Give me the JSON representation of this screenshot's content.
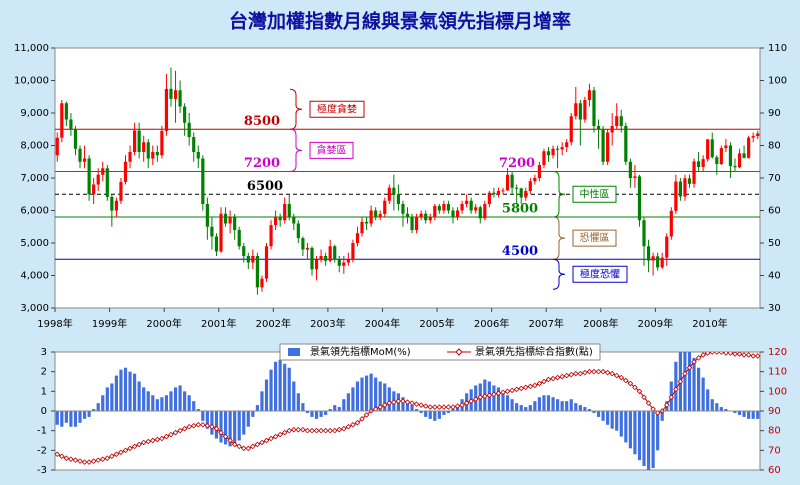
{
  "chart_data": [
    {
      "type": "candlestick",
      "title": "台灣加權指數月線與景氣領先指標月增率",
      "categories": [
        "1998年",
        null,
        null,
        null,
        null,
        null,
        null,
        null,
        null,
        null,
        null,
        null,
        "1999年",
        null,
        null,
        null,
        null,
        null,
        null,
        null,
        null,
        null,
        null,
        null,
        "2000年",
        null,
        null,
        null,
        null,
        null,
        null,
        null,
        null,
        null,
        null,
        null,
        "2001年",
        null,
        null,
        null,
        null,
        null,
        null,
        null,
        null,
        null,
        null,
        null,
        "2002年",
        null,
        null,
        null,
        null,
        null,
        null,
        null,
        null,
        null,
        null,
        null,
        "2003年",
        null,
        null,
        null,
        null,
        null,
        null,
        null,
        null,
        null,
        null,
        null,
        "2004年",
        null,
        null,
        null,
        null,
        null,
        null,
        null,
        null,
        null,
        null,
        null,
        "2005年",
        null,
        null,
        null,
        null,
        null,
        null,
        null,
        null,
        null,
        null,
        null,
        "2006年",
        null,
        null,
        null,
        null,
        null,
        null,
        null,
        null,
        null,
        null,
        null,
        "2007年",
        null,
        null,
        null,
        null,
        null,
        null,
        null,
        null,
        null,
        null,
        null,
        "2008年",
        null,
        null,
        null,
        null,
        null,
        null,
        null,
        null,
        null,
        null,
        null,
        "2009年",
        null,
        null,
        null,
        null,
        null,
        null,
        null,
        null,
        null,
        null,
        null,
        "2010年",
        null,
        null,
        null,
        null,
        null,
        null,
        null,
        null,
        null,
        null
      ],
      "open": [
        7700,
        8240,
        9300,
        8800,
        8500,
        7900,
        7500,
        7600,
        6500,
        6800,
        7100,
        7300,
        6418,
        5998,
        6300,
        6880,
        7500,
        7800,
        8460,
        7800,
        8100,
        7600,
        7800,
        7700,
        8448,
        9744,
        9435,
        9700,
        9200,
        8700,
        8260,
        7800,
        7600,
        6200,
        5500,
        5200,
        4739,
        5900,
        5600,
        5800,
        5400,
        4900,
        4600,
        4400,
        4600,
        3636,
        3903,
        4900,
        5551,
        5800,
        5700,
        6200,
        5800,
        5600,
        5150,
        4800,
        4850,
        4190,
        4500,
        4600,
        4452,
        4900,
        4500,
        4300,
        4400,
        4500,
        5000,
        5300,
        5650,
        5600,
        6000,
        5800,
        5890,
        6300,
        6700,
        6500,
        6200,
        5900,
        5800,
        5400,
        5800,
        5900,
        5700,
        5800,
        6140,
        6000,
        6200,
        6000,
        5800,
        6000,
        6200,
        6300,
        6000,
        6100,
        5760,
        6200,
        6548,
        6500,
        6600,
        6620,
        7100,
        6700,
        6680,
        6400,
        6600,
        6900,
        7000,
        7400,
        7823,
        7700,
        7900,
        7880,
        7950,
        8100,
        8900,
        9300,
        8800,
        9400,
        9700,
        8600,
        8506,
        7500,
        8400,
        8600,
        8900,
        8600,
        7500,
        7000,
        7050,
        5700,
        4900,
        4460,
        4591,
        4250,
        4550,
        5200,
        5990,
        6890,
        6430,
        6990,
        6820,
        7510,
        7340,
        7580,
        8188,
        7640,
        7430,
        7920,
        8000,
        7370,
        7330,
        7760,
        7620,
        8240,
        8290
      ],
      "high": [
        8400,
        9400,
        9350,
        9000,
        8600,
        8000,
        8000,
        7700,
        7000,
        7300,
        7500,
        7400,
        6500,
        6400,
        7000,
        7700,
        8000,
        8700,
        8700,
        8300,
        8200,
        8000,
        8000,
        8600,
        10200,
        10400,
        10300,
        10000,
        9300,
        9000,
        8400,
        8000,
        7700,
        6400,
        5800,
        5300,
        6100,
        6100,
        6000,
        5900,
        5500,
        5000,
        4700,
        4800,
        4700,
        4000,
        5000,
        5700,
        6000,
        5900,
        6400,
        6500,
        5900,
        5700,
        5200,
        5000,
        4900,
        4600,
        4800,
        4700,
        5100,
        4950,
        4600,
        4600,
        4700,
        5100,
        5500,
        5800,
        5800,
        6150,
        6100,
        6000,
        6400,
        6800,
        7100,
        6800,
        6300,
        6100,
        5900,
        5900,
        6000,
        6000,
        5900,
        6200,
        6200,
        6300,
        6300,
        6100,
        6100,
        6300,
        6500,
        6400,
        6200,
        6150,
        6300,
        6600,
        6700,
        6700,
        6700,
        7300,
        7200,
        6800,
        6700,
        6700,
        7000,
        7100,
        7500,
        7900,
        7950,
        8000,
        8000,
        8100,
        8200,
        9000,
        9800,
        9400,
        9500,
        9900,
        9800,
        8800,
        8600,
        8500,
        9000,
        9300,
        9100,
        8700,
        7600,
        7400,
        7100,
        5800,
        5100,
        4700,
        4700,
        4700,
        5300,
        6100,
        7100,
        7000,
        7100,
        7100,
        7600,
        7800,
        7700,
        8200,
        8400,
        7700,
        8000,
        8200,
        8100,
        7600,
        7900,
        8000,
        8300,
        8400,
        8450
      ],
      "low": [
        7500,
        8100,
        8600,
        8300,
        7700,
        7300,
        7300,
        6300,
        6200,
        6600,
        6900,
        6300,
        5500,
        5800,
        6200,
        6800,
        7300,
        7700,
        7600,
        7500,
        7300,
        7400,
        7500,
        7600,
        8300,
        9200,
        8700,
        9000,
        8300,
        8000,
        7500,
        7300,
        6000,
        5100,
        4800,
        4600,
        4700,
        5500,
        5300,
        5100,
        4800,
        4400,
        4200,
        4200,
        3410,
        3500,
        3800,
        4800,
        5400,
        5500,
        5600,
        5700,
        5400,
        5000,
        4600,
        4500,
        4000,
        3850,
        4400,
        4300,
        4400,
        4400,
        4100,
        4050,
        4300,
        4400,
        4900,
        5200,
        5400,
        5500,
        5700,
        5700,
        5800,
        6200,
        6000,
        6000,
        5500,
        5600,
        5300,
        5300,
        5700,
        5600,
        5600,
        5700,
        5900,
        5900,
        5900,
        5600,
        5700,
        5900,
        6100,
        5900,
        5900,
        5600,
        5700,
        6100,
        6400,
        6400,
        6500,
        6600,
        6500,
        6200,
        6200,
        6300,
        6500,
        6800,
        6900,
        7300,
        7500,
        7600,
        7300,
        7700,
        7800,
        8000,
        8800,
        8000,
        8700,
        9200,
        8400,
        7900,
        7400,
        7400,
        8000,
        8500,
        8400,
        7400,
        6700,
        6700,
        5500,
        4300,
        4100,
        4000,
        4150,
        4200,
        4300,
        5100,
        5900,
        6300,
        6300,
        6700,
        6700,
        7200,
        7200,
        7500,
        7600,
        7100,
        7400,
        7800,
        7000,
        7200,
        7300,
        7600,
        7600,
        8100,
        8200
      ],
      "close": [
        8240,
        9300,
        8800,
        8500,
        7900,
        7500,
        7600,
        6500,
        6800,
        7100,
        7300,
        6418,
        5998,
        6300,
        6880,
        7500,
        7800,
        8460,
        7800,
        8100,
        7600,
        7800,
        7700,
        8448,
        9744,
        9435,
        9700,
        9200,
        8700,
        8260,
        7800,
        7600,
        6200,
        5500,
        5200,
        4739,
        5900,
        5600,
        5800,
        5400,
        4900,
        4600,
        4400,
        4600,
        3636,
        3903,
        4900,
        5551,
        5800,
        5700,
        6200,
        5800,
        5600,
        5150,
        4800,
        4850,
        4190,
        4500,
        4600,
        4452,
        4900,
        4500,
        4300,
        4400,
        4500,
        5000,
        5300,
        5650,
        5600,
        6000,
        5800,
        5890,
        6300,
        6700,
        6500,
        6200,
        5900,
        5800,
        5400,
        5800,
        5900,
        5700,
        5800,
        6140,
        6000,
        6200,
        6000,
        5800,
        6000,
        6200,
        6300,
        6000,
        6100,
        5760,
        6200,
        6548,
        6500,
        6600,
        6620,
        7100,
        6700,
        6680,
        6400,
        6600,
        6900,
        7000,
        7400,
        7823,
        7700,
        7900,
        7880,
        7950,
        8100,
        8900,
        9300,
        8800,
        9400,
        9700,
        8600,
        8506,
        7500,
        8400,
        8600,
        8900,
        8600,
        7500,
        7000,
        7050,
        5700,
        4900,
        4460,
        4591,
        4250,
        4550,
        5200,
        5990,
        6890,
        6430,
        6990,
        6820,
        7510,
        7340,
        7580,
        8188,
        7640,
        7430,
        7920,
        8000,
        7370,
        7330,
        7760,
        7620,
        8240,
        8290,
        8370
      ],
      "up_color": "#ff0000",
      "down_color": "#008000",
      "ylim": [
        3000,
        11000
      ],
      "yticks": [
        {
          "value": 3000,
          "label": "3,000"
        },
        {
          "value": 4000,
          "label": "4,000"
        },
        {
          "value": 5000,
          "label": "5,000"
        },
        {
          "value": 6000,
          "label": "6,000"
        },
        {
          "value": 7000,
          "label": "7,000"
        },
        {
          "value": 8000,
          "label": "8,000"
        },
        {
          "value": 9000,
          "label": "9,000"
        },
        {
          "value": 10000,
          "label": "10,000"
        },
        {
          "value": 11000,
          "label": "11,000"
        }
      ],
      "y2lim": [
        30,
        110
      ],
      "y2ticks": [
        30,
        40,
        50,
        60,
        70,
        80,
        90,
        100,
        110
      ],
      "reference_lines": [
        {
          "value": 8500,
          "color": "#c00000",
          "style": "solid"
        },
        {
          "value": 7200,
          "color": "#cc00cc",
          "style": "solid"
        },
        {
          "value": 6500,
          "color": "#000000",
          "style": "dashed"
        },
        {
          "value": 5800,
          "color": "#008000",
          "style": "solid"
        },
        {
          "value": 4500,
          "color": "#0000cc",
          "style": "solid"
        }
      ],
      "zones": [
        {
          "label": "極度貪婪",
          "color": "#c00000"
        },
        {
          "label": "貪婪區",
          "color": "#cc00cc"
        },
        {
          "label": "中性區",
          "color": "#008000"
        },
        {
          "label": "恐懼區",
          "color": "#996633"
        },
        {
          "label": "極度恐懼",
          "color": "#0000cc"
        }
      ]
    },
    {
      "type": "bar_line",
      "series": [
        {
          "name": "景氣領先指標MoM(%)",
          "color": "#3f6fe0",
          "type": "bar",
          "values": [
            -0.7,
            -0.8,
            -0.6,
            -0.8,
            -0.8,
            -0.6,
            -0.4,
            -0.3,
            0.1,
            0.4,
            0.8,
            1.2,
            1.4,
            1.8,
            2.1,
            2.2,
            2.0,
            1.9,
            1.5,
            1.2,
            1.0,
            0.8,
            0.6,
            0.7,
            0.8,
            1.0,
            1.2,
            1.3,
            1.0,
            0.8,
            0.5,
            0.1,
            -0.5,
            -0.9,
            -1.2,
            -1.4,
            -1.6,
            -1.7,
            -1.8,
            -1.7,
            -1.5,
            -1.2,
            -0.8,
            -0.3,
            0.3,
            1.0,
            1.6,
            2.1,
            2.5,
            2.6,
            2.4,
            2.2,
            1.5,
            0.9,
            0.4,
            -0.1,
            -0.3,
            -0.4,
            -0.3,
            -0.2,
            0.1,
            0.3,
            0.2,
            0.6,
            0.9,
            1.2,
            1.5,
            1.7,
            1.8,
            1.9,
            1.7,
            1.5,
            1.4,
            1.2,
            1.0,
            0.9,
            0.7,
            0.5,
            0.3,
            0.1,
            -0.1,
            -0.3,
            -0.4,
            -0.5,
            -0.4,
            -0.2,
            -0.1,
            0.1,
            0.3,
            0.6,
            0.9,
            1.1,
            1.3,
            1.4,
            1.6,
            1.5,
            1.3,
            1.2,
            1.0,
            0.8,
            0.6,
            0.4,
            0.3,
            0.2,
            0.3,
            0.5,
            0.7,
            0.8,
            0.8,
            0.7,
            0.6,
            0.5,
            0.5,
            0.6,
            0.4,
            0.3,
            0.2,
            0.1,
            -0.1,
            -0.3,
            -0.5,
            -0.7,
            -0.9,
            -1.0,
            -1.3,
            -1.6,
            -1.9,
            -2.2,
            -2.5,
            -2.8,
            -3.0,
            -2.9,
            -2.0,
            -0.5,
            0.5,
            1.5,
            2.5,
            3.1,
            3.2,
            3.0,
            2.7,
            2.2,
            1.7,
            1.1,
            0.6,
            0.4,
            0.2,
            0.1,
            0.0,
            -0.1,
            -0.2,
            -0.3,
            -0.4,
            -0.4,
            -0.4
          ]
        },
        {
          "name": "景氣領先指標綜合指數(點)",
          "color": "#c00000",
          "type": "line",
          "axis": "y2",
          "values": [
            68,
            67,
            66,
            65.5,
            65,
            64.5,
            64,
            64,
            64.5,
            65,
            65.5,
            66,
            67,
            68,
            69,
            70,
            71,
            72,
            73,
            74,
            74.5,
            75,
            75.5,
            76,
            77,
            78,
            79,
            80,
            81,
            82,
            82.5,
            83,
            83,
            82.5,
            82,
            81,
            79,
            77,
            75,
            73,
            72,
            71,
            71,
            72,
            73,
            74,
            75,
            76,
            77,
            78,
            79,
            80,
            80.5,
            80.5,
            80.5,
            80,
            80,
            80,
            80,
            80,
            80,
            80,
            80.5,
            81,
            82,
            83,
            84,
            86,
            88,
            90,
            91,
            92,
            93,
            94,
            94.5,
            95,
            95,
            94.5,
            94,
            93.5,
            93,
            92.5,
            92,
            92,
            92,
            92,
            92,
            92,
            92.5,
            93,
            94,
            95,
            96,
            97,
            97.5,
            98,
            98.5,
            99,
            99.5,
            100,
            100.5,
            101,
            101.5,
            102,
            102.5,
            103,
            104,
            105,
            106,
            106.5,
            107,
            107.5,
            108,
            108.5,
            109,
            109,
            109.5,
            110,
            110,
            110,
            110,
            109.5,
            109,
            108,
            107,
            105.5,
            104,
            102,
            100,
            97,
            94,
            91,
            89,
            90,
            93,
            97,
            101,
            105,
            109,
            112,
            115,
            117,
            118.5,
            119.5,
            120,
            120,
            120,
            119.5,
            119.5,
            119,
            119,
            118.5,
            118.5,
            118,
            118
          ]
        }
      ],
      "ylim": [
        -3,
        3
      ],
      "yticks": [
        -3,
        -2,
        -1,
        0,
        1,
        2,
        3
      ],
      "y2lim": [
        60,
        120
      ],
      "y2ticks": [
        60,
        70,
        80,
        90,
        100,
        110,
        120
      ],
      "legend": "top"
    }
  ]
}
